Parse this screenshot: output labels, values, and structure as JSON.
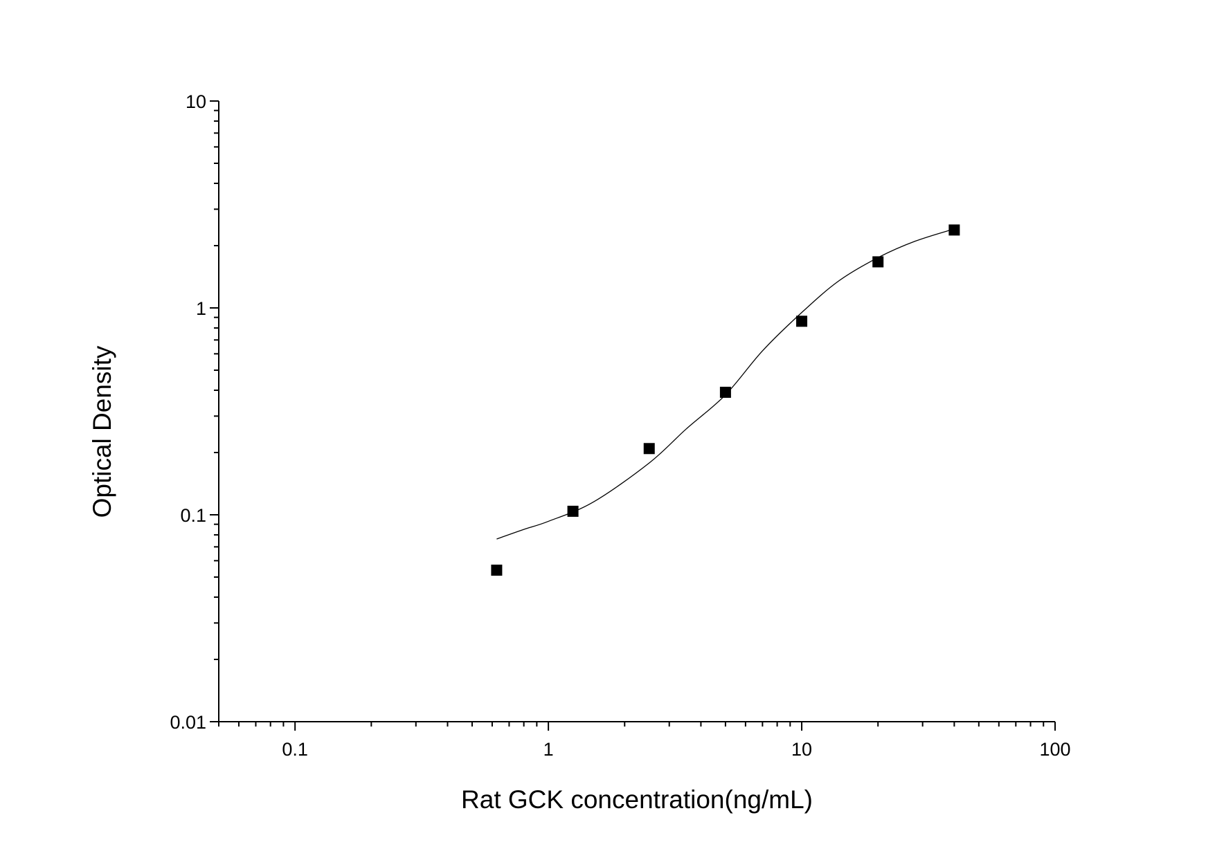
{
  "chart_data": {
    "type": "scatter",
    "title": "",
    "xlabel": "Rat GCK concentration(ng/mL)",
    "ylabel": "Optical Density",
    "xscale": "log",
    "yscale": "log",
    "xlim": [
      0.05,
      100
    ],
    "ylim": [
      0.01,
      10
    ],
    "x_ticks": [
      {
        "value": 0.1,
        "label": "0.1"
      },
      {
        "value": 1,
        "label": "1"
      },
      {
        "value": 10,
        "label": "10"
      },
      {
        "value": 100,
        "label": "100"
      }
    ],
    "y_ticks": [
      {
        "value": 0.01,
        "label": "0.01"
      },
      {
        "value": 0.1,
        "label": "0.1"
      },
      {
        "value": 1,
        "label": "1"
      },
      {
        "value": 10,
        "label": "10"
      }
    ],
    "grid": false,
    "legend": "none",
    "series": [
      {
        "kind": "points",
        "marker": "square",
        "color": "#000000",
        "x": [
          0.625,
          1.25,
          2.5,
          5,
          10,
          20,
          40
        ],
        "y": [
          0.054,
          0.104,
          0.209,
          0.391,
          0.862,
          1.67,
          2.38
        ]
      },
      {
        "kind": "fit-curve",
        "color": "#000000",
        "x": [
          0.625,
          0.8,
          1,
          1.5,
          2.5,
          3.5,
          5,
          7,
          10,
          14,
          20,
          28,
          40
        ],
        "y": [
          0.0764,
          0.085,
          0.093,
          0.115,
          0.178,
          0.26,
          0.38,
          0.62,
          0.95,
          1.35,
          1.75,
          2.1,
          2.41
        ]
      }
    ]
  }
}
